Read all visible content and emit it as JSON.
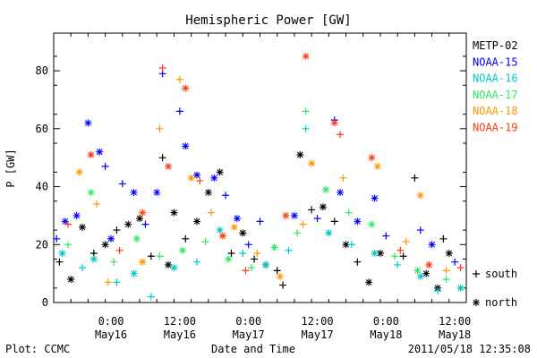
{
  "chart_data": {
    "type": "scatter",
    "title": "Hemispheric Power [GW]",
    "ylabel": "P [GW]",
    "xlabel": "Date and Time",
    "ylim": [
      0,
      93
    ],
    "xlim": [
      "2011-05-15T14:00",
      "2011-05-18T14:00"
    ],
    "y_ticks": [
      0,
      20,
      40,
      60,
      80
    ],
    "x_ticks": [
      {
        "x": "2011-05-16T00:00",
        "time": "0:00",
        "date": "May16"
      },
      {
        "x": "2011-05-16T12:00",
        "time": "12:00",
        "date": "May16"
      },
      {
        "x": "2011-05-17T00:00",
        "time": "0:00",
        "date": "May17"
      },
      {
        "x": "2011-05-17T12:00",
        "time": "12:00",
        "date": "May17"
      },
      {
        "x": "2011-05-18T00:00",
        "time": "0:00",
        "date": "May18"
      },
      {
        "x": "2011-05-18T12:00",
        "time": "12:00",
        "date": "May18"
      }
    ],
    "grid": false,
    "legend_position": "right",
    "marker_legend": [
      {
        "symbol": "+",
        "label": "south"
      },
      {
        "symbol": "*",
        "label": "north"
      }
    ],
    "series": [
      {
        "name": "METP-02",
        "color": "#000000",
        "points": [
          {
            "x": "2011-05-15T15:00",
            "y": 14,
            "h": "S"
          },
          {
            "x": "2011-05-15T17:00",
            "y": 8,
            "h": "N"
          },
          {
            "x": "2011-05-15T19:00",
            "y": 26,
            "h": "N"
          },
          {
            "x": "2011-05-15T21:00",
            "y": 17,
            "h": "S"
          },
          {
            "x": "2011-05-15T23:00",
            "y": 20,
            "h": "N"
          },
          {
            "x": "2011-05-16T01:00",
            "y": 25,
            "h": "S"
          },
          {
            "x": "2011-05-16T03:00",
            "y": 27,
            "h": "N"
          },
          {
            "x": "2011-05-16T05:00",
            "y": 29,
            "h": "N"
          },
          {
            "x": "2011-05-16T07:00",
            "y": 16,
            "h": "S"
          },
          {
            "x": "2011-05-16T09:00",
            "y": 50,
            "h": "S"
          },
          {
            "x": "2011-05-16T10:00",
            "y": 13,
            "h": "N"
          },
          {
            "x": "2011-05-16T11:00",
            "y": 31,
            "h": "N"
          },
          {
            "x": "2011-05-16T13:00",
            "y": 22,
            "h": "S"
          },
          {
            "x": "2011-05-16T15:00",
            "y": 28,
            "h": "N"
          },
          {
            "x": "2011-05-16T17:00",
            "y": 38,
            "h": "N"
          },
          {
            "x": "2011-05-16T19:00",
            "y": 45,
            "h": "N"
          },
          {
            "x": "2011-05-16T21:00",
            "y": 17,
            "h": "S"
          },
          {
            "x": "2011-05-16T23:00",
            "y": 24,
            "h": "N"
          },
          {
            "x": "2011-05-17T01:00",
            "y": 15,
            "h": "S"
          },
          {
            "x": "2011-05-17T03:00",
            "y": 13,
            "h": "N"
          },
          {
            "x": "2011-05-17T05:00",
            "y": 11,
            "h": "S"
          },
          {
            "x": "2011-05-17T06:00",
            "y": 6,
            "h": "S"
          },
          {
            "x": "2011-05-17T09:00",
            "y": 51,
            "h": "N"
          },
          {
            "x": "2011-05-17T11:00",
            "y": 32,
            "h": "S"
          },
          {
            "x": "2011-05-17T13:00",
            "y": 33,
            "h": "N"
          },
          {
            "x": "2011-05-17T15:00",
            "y": 28,
            "h": "S"
          },
          {
            "x": "2011-05-17T17:00",
            "y": 20,
            "h": "N"
          },
          {
            "x": "2011-05-17T19:00",
            "y": 14,
            "h": "S"
          },
          {
            "x": "2011-05-17T21:00",
            "y": 7,
            "h": "N"
          },
          {
            "x": "2011-05-17T23:00",
            "y": 17,
            "h": "N"
          },
          {
            "x": "2011-05-18T03:00",
            "y": 16,
            "h": "S"
          },
          {
            "x": "2011-05-18T05:00",
            "y": 43,
            "h": "S"
          },
          {
            "x": "2011-05-18T07:00",
            "y": 10,
            "h": "N"
          },
          {
            "x": "2011-05-18T09:00",
            "y": 5,
            "h": "N"
          },
          {
            "x": "2011-05-18T10:00",
            "y": 22,
            "h": "S"
          },
          {
            "x": "2011-05-18T11:00",
            "y": 17,
            "h": "N"
          }
        ]
      },
      {
        "name": "NOAA-15",
        "color": "#0000ff",
        "points": [
          {
            "x": "2011-05-15T14:30",
            "y": 22,
            "h": "S"
          },
          {
            "x": "2011-05-15T16:00",
            "y": 28,
            "h": "N"
          },
          {
            "x": "2011-05-15T18:00",
            "y": 30,
            "h": "N"
          },
          {
            "x": "2011-05-15T20:00",
            "y": 62,
            "h": "N"
          },
          {
            "x": "2011-05-15T22:00",
            "y": 52,
            "h": "N"
          },
          {
            "x": "2011-05-15T23:00",
            "y": 47,
            "h": "S"
          },
          {
            "x": "2011-05-16T00:00",
            "y": 22,
            "h": "N"
          },
          {
            "x": "2011-05-16T02:00",
            "y": 41,
            "h": "S"
          },
          {
            "x": "2011-05-16T04:00",
            "y": 38,
            "h": "N"
          },
          {
            "x": "2011-05-16T06:00",
            "y": 27,
            "h": "S"
          },
          {
            "x": "2011-05-16T08:00",
            "y": 38,
            "h": "N"
          },
          {
            "x": "2011-05-16T09:00",
            "y": 79,
            "h": "S"
          },
          {
            "x": "2011-05-16T12:00",
            "y": 66,
            "h": "S"
          },
          {
            "x": "2011-05-16T13:00",
            "y": 54,
            "h": "N"
          },
          {
            "x": "2011-05-16T15:00",
            "y": 44,
            "h": "N"
          },
          {
            "x": "2011-05-16T18:00",
            "y": 43,
            "h": "N"
          },
          {
            "x": "2011-05-16T20:00",
            "y": 37,
            "h": "S"
          },
          {
            "x": "2011-05-16T22:00",
            "y": 29,
            "h": "N"
          },
          {
            "x": "2011-05-17T00:00",
            "y": 20,
            "h": "S"
          },
          {
            "x": "2011-05-17T02:00",
            "y": 28,
            "h": "S"
          },
          {
            "x": "2011-05-17T08:00",
            "y": 30,
            "h": "N"
          },
          {
            "x": "2011-05-17T12:00",
            "y": 29,
            "h": "S"
          },
          {
            "x": "2011-05-17T15:00",
            "y": 63,
            "h": "S"
          },
          {
            "x": "2011-05-17T16:00",
            "y": 38,
            "h": "N"
          },
          {
            "x": "2011-05-17T19:00",
            "y": 28,
            "h": "N"
          },
          {
            "x": "2011-05-17T22:00",
            "y": 36,
            "h": "N"
          },
          {
            "x": "2011-05-18T00:00",
            "y": 23,
            "h": "S"
          },
          {
            "x": "2011-05-18T06:00",
            "y": 25,
            "h": "S"
          },
          {
            "x": "2011-05-18T08:00",
            "y": 20,
            "h": "N"
          },
          {
            "x": "2011-05-18T12:00",
            "y": 14,
            "h": "S"
          }
        ]
      },
      {
        "name": "NOAA-16",
        "color": "#00c8c8",
        "points": [
          {
            "x": "2011-05-15T15:30",
            "y": 17,
            "h": "N"
          },
          {
            "x": "2011-05-15T19:00",
            "y": 12,
            "h": "S"
          },
          {
            "x": "2011-05-15T21:00",
            "y": 15,
            "h": "N"
          },
          {
            "x": "2011-05-16T01:00",
            "y": 7,
            "h": "S"
          },
          {
            "x": "2011-05-16T04:00",
            "y": 10,
            "h": "N"
          },
          {
            "x": "2011-05-16T07:00",
            "y": 2,
            "h": "S"
          },
          {
            "x": "2011-05-16T11:00",
            "y": 12,
            "h": "N"
          },
          {
            "x": "2011-05-16T15:00",
            "y": 14,
            "h": "S"
          },
          {
            "x": "2011-05-16T19:00",
            "y": 25,
            "h": "N"
          },
          {
            "x": "2011-05-16T23:00",
            "y": 17,
            "h": "S"
          },
          {
            "x": "2011-05-17T03:00",
            "y": 13,
            "h": "N"
          },
          {
            "x": "2011-05-17T07:00",
            "y": 18,
            "h": "S"
          },
          {
            "x": "2011-05-17T10:00",
            "y": 60,
            "h": "S"
          },
          {
            "x": "2011-05-17T14:00",
            "y": 24,
            "h": "N"
          },
          {
            "x": "2011-05-17T18:00",
            "y": 20,
            "h": "S"
          },
          {
            "x": "2011-05-17T22:00",
            "y": 17,
            "h": "N"
          },
          {
            "x": "2011-05-18T02:00",
            "y": 13,
            "h": "S"
          },
          {
            "x": "2011-05-18T06:00",
            "y": 9,
            "h": "N"
          },
          {
            "x": "2011-05-18T09:00",
            "y": 4,
            "h": "S"
          },
          {
            "x": "2011-05-18T13:00",
            "y": 5,
            "h": "N"
          }
        ]
      },
      {
        "name": "NOAA-17",
        "color": "#32e664",
        "points": [
          {
            "x": "2011-05-15T16:30",
            "y": 20,
            "h": "S"
          },
          {
            "x": "2011-05-15T20:30",
            "y": 38,
            "h": "N"
          },
          {
            "x": "2011-05-16T00:30",
            "y": 14,
            "h": "S"
          },
          {
            "x": "2011-05-16T04:30",
            "y": 22,
            "h": "N"
          },
          {
            "x": "2011-05-16T08:30",
            "y": 16,
            "h": "S"
          },
          {
            "x": "2011-05-16T12:30",
            "y": 18,
            "h": "N"
          },
          {
            "x": "2011-05-16T16:30",
            "y": 21,
            "h": "S"
          },
          {
            "x": "2011-05-16T20:30",
            "y": 15,
            "h": "N"
          },
          {
            "x": "2011-05-17T00:30",
            "y": 12,
            "h": "S"
          },
          {
            "x": "2011-05-17T04:30",
            "y": 19,
            "h": "N"
          },
          {
            "x": "2011-05-17T08:30",
            "y": 24,
            "h": "S"
          },
          {
            "x": "2011-05-17T10:00",
            "y": 66,
            "h": "S"
          },
          {
            "x": "2011-05-17T13:30",
            "y": 39,
            "h": "N"
          },
          {
            "x": "2011-05-17T17:30",
            "y": 31,
            "h": "S"
          },
          {
            "x": "2011-05-17T21:30",
            "y": 27,
            "h": "N"
          },
          {
            "x": "2011-05-18T01:30",
            "y": 16,
            "h": "S"
          },
          {
            "x": "2011-05-18T05:30",
            "y": 11,
            "h": "N"
          },
          {
            "x": "2011-05-18T10:30",
            "y": 8,
            "h": "S"
          }
        ]
      },
      {
        "name": "NOAA-18",
        "color": "#ff9600",
        "points": [
          {
            "x": "2011-05-15T18:30",
            "y": 45,
            "h": "N"
          },
          {
            "x": "2011-05-15T21:30",
            "y": 34,
            "h": "S"
          },
          {
            "x": "2011-05-15T23:30",
            "y": 7,
            "h": "S"
          },
          {
            "x": "2011-05-16T05:30",
            "y": 14,
            "h": "N"
          },
          {
            "x": "2011-05-16T08:30",
            "y": 60,
            "h": "S"
          },
          {
            "x": "2011-05-16T12:00",
            "y": 77,
            "h": "S"
          },
          {
            "x": "2011-05-16T14:00",
            "y": 43,
            "h": "N"
          },
          {
            "x": "2011-05-16T17:30",
            "y": 31,
            "h": "S"
          },
          {
            "x": "2011-05-16T21:30",
            "y": 26,
            "h": "N"
          },
          {
            "x": "2011-05-17T01:30",
            "y": 17,
            "h": "S"
          },
          {
            "x": "2011-05-17T05:30",
            "y": 9,
            "h": "N"
          },
          {
            "x": "2011-05-17T09:30",
            "y": 27,
            "h": "S"
          },
          {
            "x": "2011-05-17T11:00",
            "y": 48,
            "h": "N"
          },
          {
            "x": "2011-05-17T16:30",
            "y": 43,
            "h": "S"
          },
          {
            "x": "2011-05-17T22:30",
            "y": 47,
            "h": "N"
          },
          {
            "x": "2011-05-18T03:30",
            "y": 21,
            "h": "S"
          },
          {
            "x": "2011-05-18T06:00",
            "y": 37,
            "h": "N"
          },
          {
            "x": "2011-05-18T10:30",
            "y": 11,
            "h": "S"
          }
        ]
      },
      {
        "name": "NOAA-19",
        "color": "#ff3c14",
        "points": [
          {
            "x": "2011-05-15T16:30",
            "y": 27,
            "h": "S"
          },
          {
            "x": "2011-05-15T20:30",
            "y": 51,
            "h": "N"
          },
          {
            "x": "2011-05-16T01:30",
            "y": 18,
            "h": "S"
          },
          {
            "x": "2011-05-16T05:30",
            "y": 31,
            "h": "N"
          },
          {
            "x": "2011-05-16T09:00",
            "y": 81,
            "h": "S"
          },
          {
            "x": "2011-05-16T10:00",
            "y": 47,
            "h": "N"
          },
          {
            "x": "2011-05-16T13:00",
            "y": 74,
            "h": "N"
          },
          {
            "x": "2011-05-16T15:30",
            "y": 42,
            "h": "S"
          },
          {
            "x": "2011-05-16T19:30",
            "y": 23,
            "h": "N"
          },
          {
            "x": "2011-05-16T23:30",
            "y": 11,
            "h": "S"
          },
          {
            "x": "2011-05-17T06:30",
            "y": 30,
            "h": "N"
          },
          {
            "x": "2011-05-17T10:00",
            "y": 85,
            "h": "N"
          },
          {
            "x": "2011-05-17T15:00",
            "y": 62,
            "h": "N"
          },
          {
            "x": "2011-05-17T16:00",
            "y": 58,
            "h": "S"
          },
          {
            "x": "2011-05-17T21:30",
            "y": 50,
            "h": "N"
          },
          {
            "x": "2011-05-18T02:30",
            "y": 18,
            "h": "S"
          },
          {
            "x": "2011-05-18T07:30",
            "y": 13,
            "h": "N"
          },
          {
            "x": "2011-05-18T13:00",
            "y": 12,
            "h": "S"
          }
        ]
      }
    ]
  },
  "footer": {
    "left": "Plot: CCMC",
    "center": "Date and Time",
    "right": "2011/05/18 12:35:08"
  }
}
